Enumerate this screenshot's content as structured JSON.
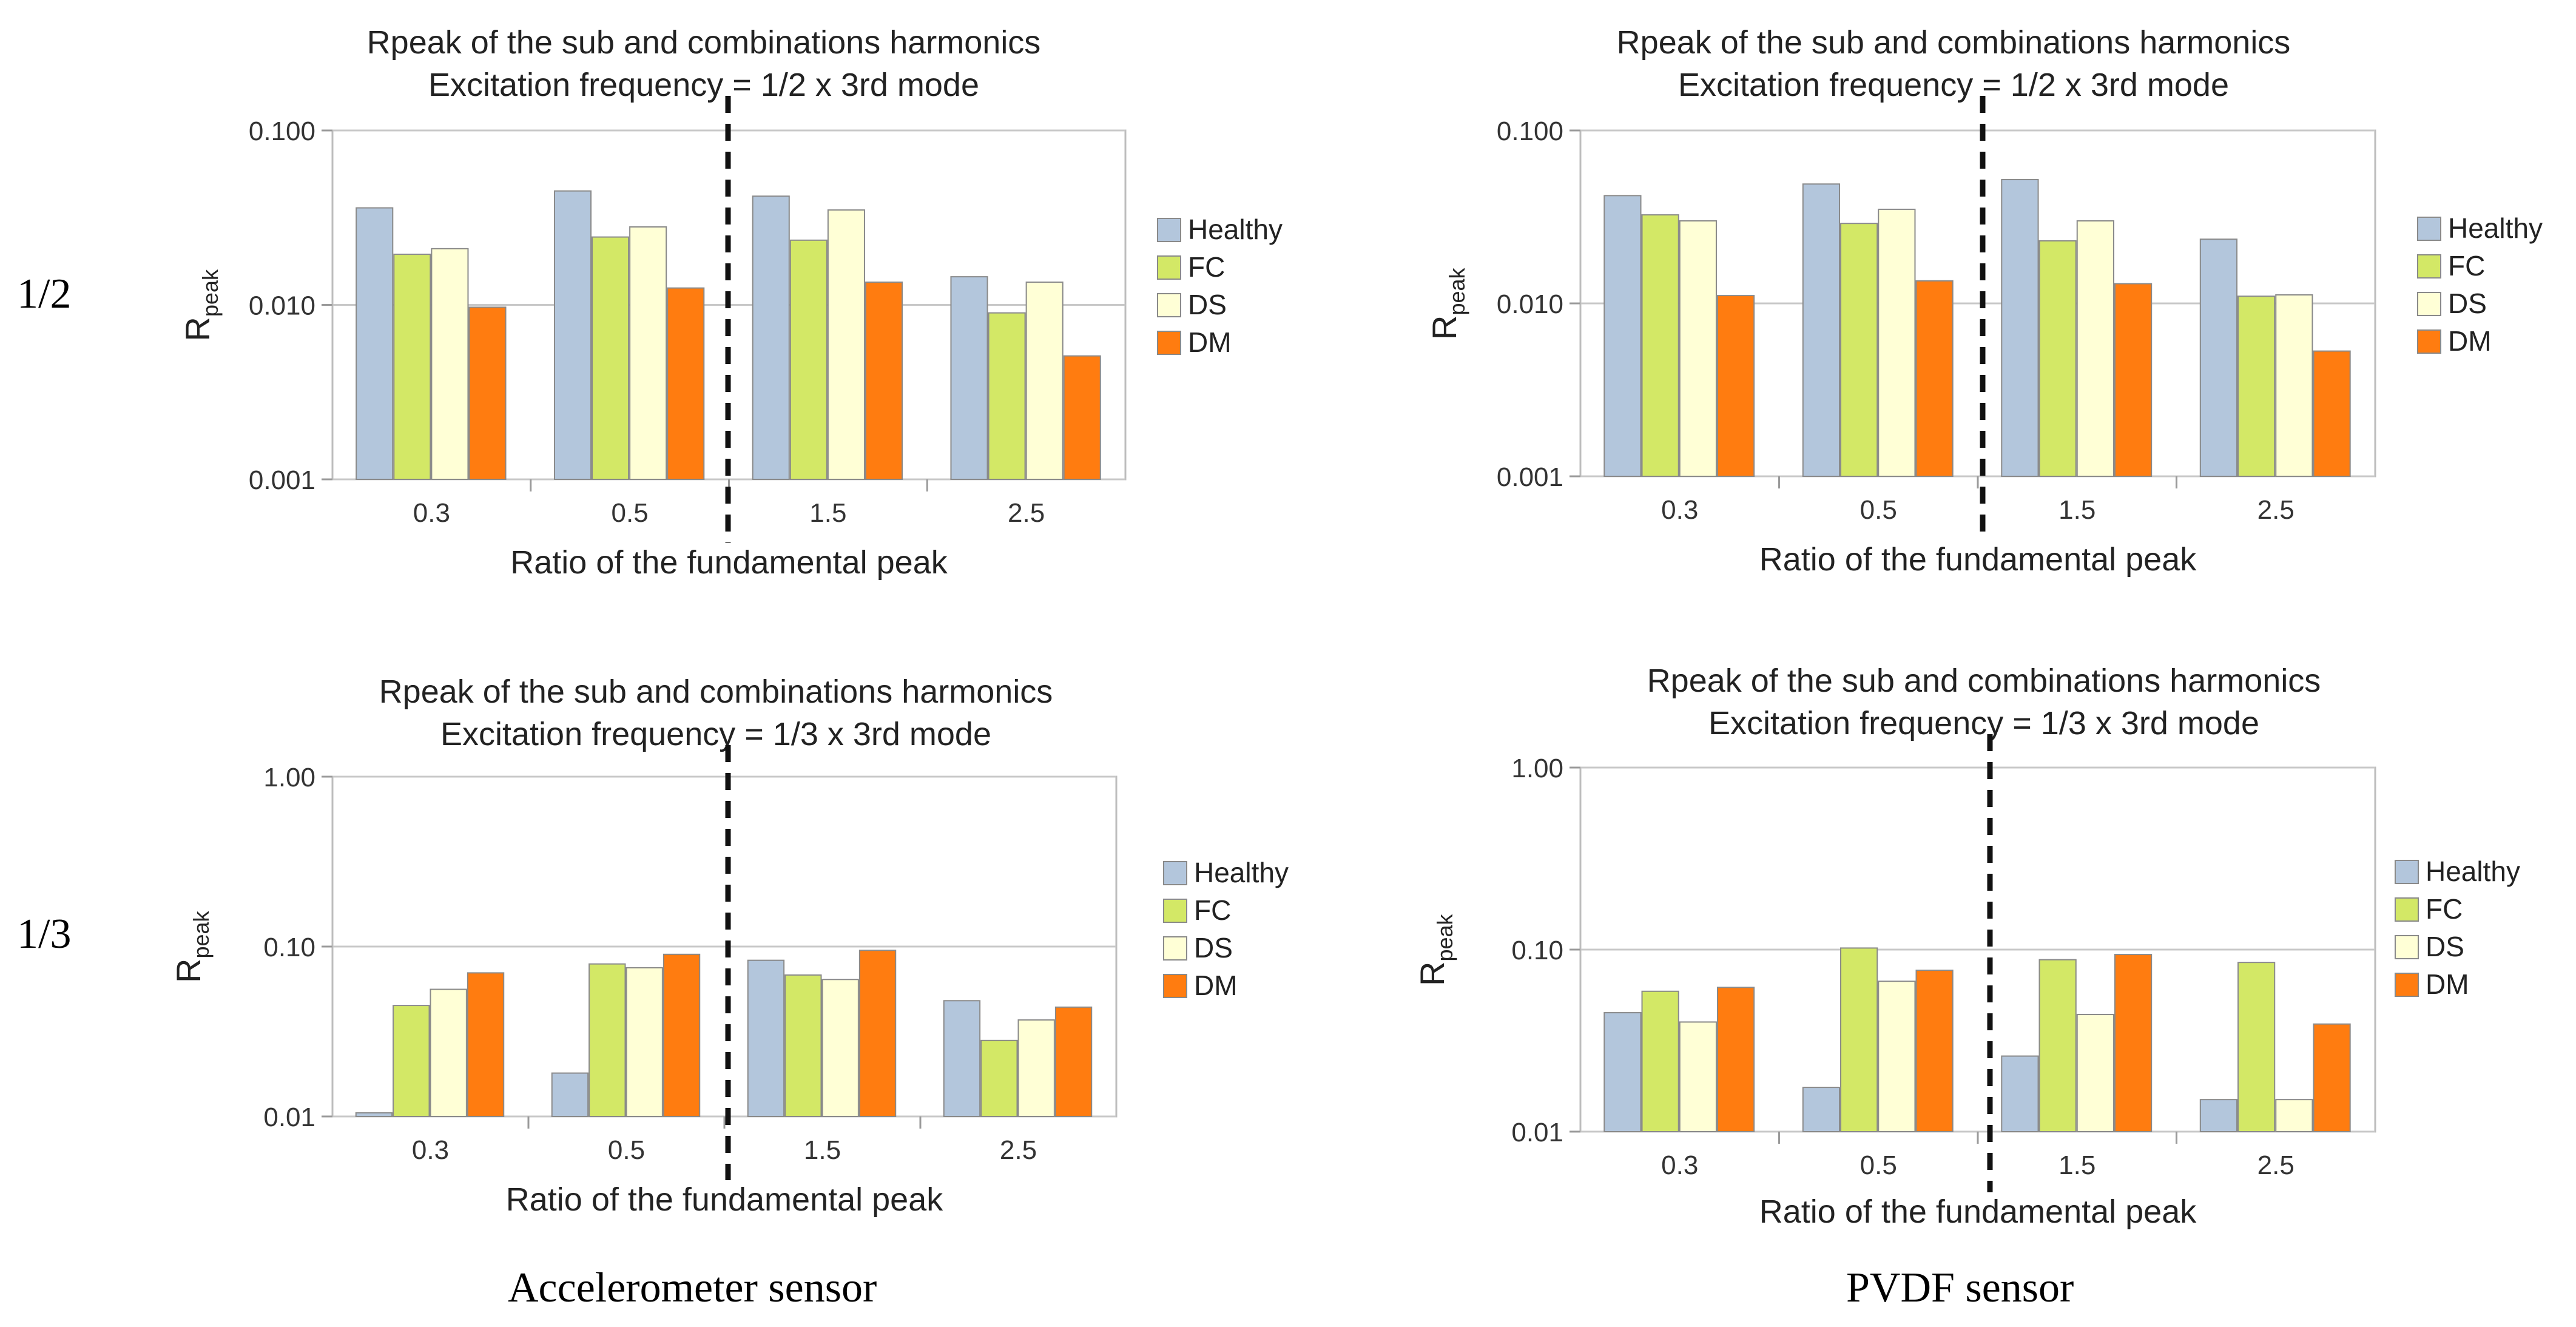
{
  "row_labels": [
    "1/2",
    "1/3"
  ],
  "column_labels": [
    "Accelerometer sensor",
    "PVDF sensor"
  ],
  "series_colors": {
    "Healthy": "#b3c6dc",
    "FC": "#d3e866",
    "DS": "#ffffd6",
    "DM": "#ff7c10"
  },
  "chart_data": [
    {
      "type": "bar",
      "scale": "log",
      "title": "Rpeak of the sub and combinations harmonics",
      "subtitle": "Excitation frequency = 1/2 x 3rd mode",
      "xlabel": "Ratio of the fundamental peak",
      "ylabel_main": "R",
      "ylabel_sub": "peak",
      "categories": [
        "0.3",
        "0.5",
        "1.5",
        "2.5"
      ],
      "ylim": [
        0.001,
        0.1
      ],
      "yticks": [
        "0.001",
        "0.010",
        "0.100"
      ],
      "series": [
        {
          "name": "Healthy",
          "values": [
            0.036,
            0.045,
            0.042,
            0.0145
          ]
        },
        {
          "name": "FC",
          "values": [
            0.0195,
            0.0245,
            0.0235,
            0.009
          ]
        },
        {
          "name": "DS",
          "values": [
            0.021,
            0.028,
            0.035,
            0.0135
          ]
        },
        {
          "name": "DM",
          "values": [
            0.0097,
            0.0125,
            0.0135,
            0.0051
          ]
        }
      ],
      "divider_after_category": 2
    },
    {
      "type": "bar",
      "scale": "log",
      "title": "Rpeak of the sub and combinations harmonics",
      "subtitle": "Excitation frequency = 1/2 x 3rd mode",
      "xlabel": "Ratio of the fundamental peak",
      "ylabel_main": "R",
      "ylabel_sub": "peak",
      "categories": [
        "0.3",
        "0.5",
        "1.5",
        "2.5"
      ],
      "ylim": [
        0.001,
        0.1
      ],
      "yticks": [
        "0.001",
        "0.010",
        "0.100"
      ],
      "series": [
        {
          "name": "Healthy",
          "values": [
            0.042,
            0.049,
            0.052,
            0.0235
          ]
        },
        {
          "name": "FC",
          "values": [
            0.0325,
            0.029,
            0.023,
            0.011
          ]
        },
        {
          "name": "DS",
          "values": [
            0.03,
            0.035,
            0.03,
            0.0112
          ]
        },
        {
          "name": "DM",
          "values": [
            0.0111,
            0.0135,
            0.013,
            0.0053
          ]
        }
      ],
      "divider_after_category": 2
    },
    {
      "type": "bar",
      "scale": "log",
      "title": "Rpeak of the sub and combinations harmonics",
      "subtitle": "Excitation frequency = 1/3 x 3rd mode",
      "xlabel": "Ratio of the fundamental peak",
      "ylabel_main": "R",
      "ylabel_sub": "peak",
      "categories": [
        "0.3",
        "0.5",
        "1.5",
        "2.5"
      ],
      "ylim": [
        0.01,
        1
      ],
      "yticks": [
        "0.01",
        "0.10",
        "1.00"
      ],
      "series": [
        {
          "name": "Healthy",
          "values": [
            0.0105,
            0.018,
            0.083,
            0.048
          ]
        },
        {
          "name": "FC",
          "values": [
            0.045,
            0.079,
            0.068,
            0.028
          ]
        },
        {
          "name": "DS",
          "values": [
            0.056,
            0.075,
            0.064,
            0.037
          ]
        },
        {
          "name": "DM",
          "values": [
            0.07,
            0.09,
            0.095,
            0.044
          ]
        }
      ],
      "divider_after_category": 2
    },
    {
      "type": "bar",
      "scale": "log",
      "title": "Rpeak of the sub and combinations harmonics",
      "subtitle": "Excitation frequency = 1/3 x 3rd mode",
      "xlabel": "Ratio of the fundamental peak",
      "ylabel_main": "R",
      "ylabel_sub": "peak",
      "categories": [
        "0.3",
        "0.5",
        "1.5",
        "2.5"
      ],
      "ylim": [
        0.01,
        1
      ],
      "yticks": [
        "0.01",
        "0.10",
        "1.00"
      ],
      "series": [
        {
          "name": "Healthy",
          "values": [
            0.045,
            0.0175,
            0.026,
            0.015
          ]
        },
        {
          "name": "FC",
          "values": [
            0.059,
            0.102,
            0.088,
            0.085
          ]
        },
        {
          "name": "DS",
          "values": [
            0.04,
            0.067,
            0.044,
            0.015
          ]
        },
        {
          "name": "DM",
          "values": [
            0.062,
            0.077,
            0.094,
            0.039
          ]
        }
      ],
      "divider_after_category": 2
    }
  ]
}
